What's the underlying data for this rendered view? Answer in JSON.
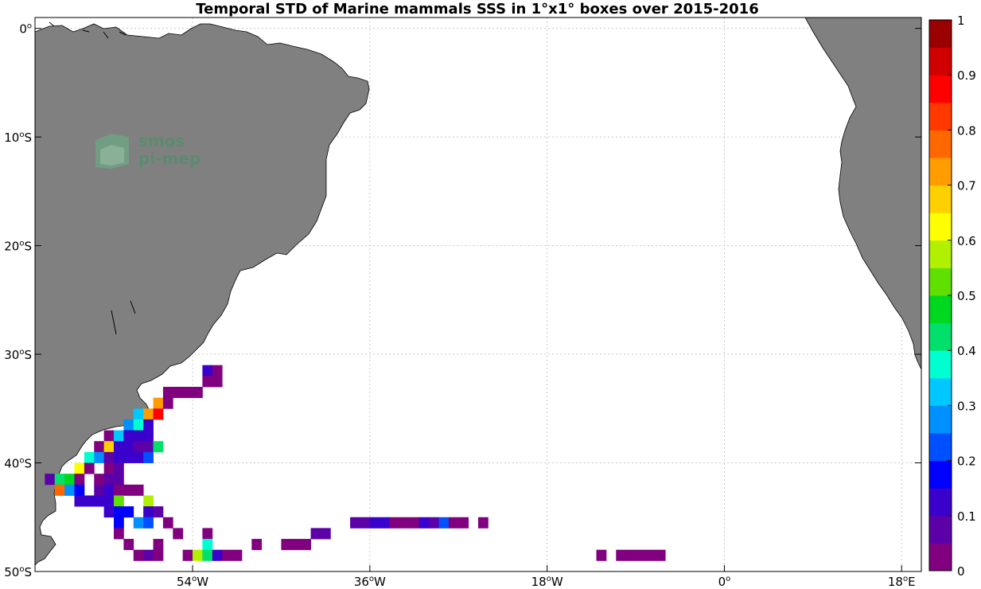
{
  "chart_data": {
    "type": "heatmap",
    "title": "Temporal STD of Marine mammals SSS in 1°x1° boxes over 2015-2016",
    "map_extent": {
      "lon": [
        -70,
        20
      ],
      "lat": [
        -50,
        1
      ]
    },
    "x_ticks": [
      {
        "value": -54,
        "num": "54",
        "hemi": "W"
      },
      {
        "value": -36,
        "num": "36",
        "hemi": "W"
      },
      {
        "value": -18,
        "num": "18",
        "hemi": "W"
      },
      {
        "value": 0,
        "num": "0",
        "hemi": ""
      },
      {
        "value": 18,
        "num": "18",
        "hemi": "E"
      }
    ],
    "y_ticks": [
      {
        "value": 0,
        "num": "0",
        "hemi": ""
      },
      {
        "value": -10,
        "num": "10",
        "hemi": "S"
      },
      {
        "value": -20,
        "num": "20",
        "hemi": "S"
      },
      {
        "value": -30,
        "num": "30",
        "hemi": "S"
      },
      {
        "value": -40,
        "num": "40",
        "hemi": "S"
      },
      {
        "value": -50,
        "num": "50",
        "hemi": "S"
      }
    ],
    "grid": true,
    "colorbar": {
      "range": [
        0,
        1
      ],
      "ticks": [
        "0",
        "0.1",
        "0.2",
        "0.3",
        "0.4",
        "0.5",
        "0.6",
        "0.7",
        "0.8",
        "0.9",
        "1"
      ],
      "colors": [
        "#800080",
        "#5c00a8",
        "#3a00cc",
        "#0000ff",
        "#0050ff",
        "#0090ff",
        "#00c8ff",
        "#00ffd0",
        "#00e06a",
        "#00d820",
        "#60e000",
        "#b0f000",
        "#ffff00",
        "#ffd000",
        "#ff9c00",
        "#ff6800",
        "#ff3800",
        "#ff0000",
        "#d00000",
        "#9a0000"
      ]
    },
    "land_color": "#808080",
    "cells": [
      {
        "lon": -52.5,
        "lat": -31.5,
        "v": 0.1
      },
      {
        "lon": -51.5,
        "lat": -31.5,
        "v": 0.02
      },
      {
        "lon": -52.5,
        "lat": -32.5,
        "v": 0.02
      },
      {
        "lon": -51.5,
        "lat": -32.5,
        "v": 0.02
      },
      {
        "lon": -56.5,
        "lat": -33.5,
        "v": 0.02
      },
      {
        "lon": -55.5,
        "lat": -33.5,
        "v": 0.02
      },
      {
        "lon": -54.5,
        "lat": -33.5,
        "v": 0.02
      },
      {
        "lon": -53.5,
        "lat": -33.5,
        "v": 0.02
      },
      {
        "lon": -57.5,
        "lat": -34.5,
        "v": 0.74
      },
      {
        "lon": -56.5,
        "lat": -34.5,
        "v": 0.02
      },
      {
        "lon": -59.5,
        "lat": -35.5,
        "v": 0.3
      },
      {
        "lon": -58.5,
        "lat": -35.5,
        "v": 0.74
      },
      {
        "lon": -57.5,
        "lat": -35.5,
        "v": 0.86
      },
      {
        "lon": -60.5,
        "lat": -36.5,
        "v": 0.27
      },
      {
        "lon": -59.5,
        "lat": -36.5,
        "v": 0.38
      },
      {
        "lon": -58.5,
        "lat": -36.5,
        "v": 0.13
      },
      {
        "lon": -62.5,
        "lat": -37.5,
        "v": 0.02
      },
      {
        "lon": -61.5,
        "lat": -37.5,
        "v": 0.34
      },
      {
        "lon": -60.5,
        "lat": -37.5,
        "v": 0.13
      },
      {
        "lon": -59.5,
        "lat": -37.5,
        "v": 0.13
      },
      {
        "lon": -58.5,
        "lat": -37.5,
        "v": 0.1
      },
      {
        "lon": -63.5,
        "lat": -38.5,
        "v": 0.02
      },
      {
        "lon": -62.5,
        "lat": -38.5,
        "v": 0.65
      },
      {
        "lon": -61.5,
        "lat": -38.5,
        "v": 0.13
      },
      {
        "lon": -60.5,
        "lat": -38.5,
        "v": 0.1
      },
      {
        "lon": -59.5,
        "lat": -38.5,
        "v": 0.05
      },
      {
        "lon": -58.5,
        "lat": -38.5,
        "v": 0.05
      },
      {
        "lon": -57.5,
        "lat": -38.5,
        "v": 0.4
      },
      {
        "lon": -64.5,
        "lat": -39.5,
        "v": 0.38
      },
      {
        "lon": -63.5,
        "lat": -39.5,
        "v": 0.27
      },
      {
        "lon": -62.5,
        "lat": -39.5,
        "v": 0.05
      },
      {
        "lon": -61.5,
        "lat": -39.5,
        "v": 0.1
      },
      {
        "lon": -60.5,
        "lat": -39.5,
        "v": 0.1
      },
      {
        "lon": -59.5,
        "lat": -39.5,
        "v": 0.1
      },
      {
        "lon": -58.5,
        "lat": -39.5,
        "v": 0.2
      },
      {
        "lon": -65.5,
        "lat": -40.5,
        "v": 0.62
      },
      {
        "lon": -64.5,
        "lat": -40.5,
        "v": 0.02
      },
      {
        "lon": -62.5,
        "lat": -40.5,
        "v": 0.02
      },
      {
        "lon": -61.5,
        "lat": -40.5,
        "v": 0.05
      },
      {
        "lon": -68.5,
        "lat": -41.5,
        "v": 0.05
      },
      {
        "lon": -67.5,
        "lat": -41.5,
        "v": 0.42
      },
      {
        "lon": -66.5,
        "lat": -41.5,
        "v": 0.45
      },
      {
        "lon": -65.5,
        "lat": -41.5,
        "v": 0.02
      },
      {
        "lon": -63.5,
        "lat": -41.5,
        "v": 0.02
      },
      {
        "lon": -62.5,
        "lat": -41.5,
        "v": 0.05
      },
      {
        "lon": -61.5,
        "lat": -41.5,
        "v": 0.05
      },
      {
        "lon": -67.5,
        "lat": -42.5,
        "v": 0.76
      },
      {
        "lon": -66.5,
        "lat": -42.5,
        "v": 0.27
      },
      {
        "lon": -65.5,
        "lat": -42.5,
        "v": 0.17
      },
      {
        "lon": -63.5,
        "lat": -42.5,
        "v": 0.05
      },
      {
        "lon": -62.5,
        "lat": -42.5,
        "v": 0.1
      },
      {
        "lon": -61.5,
        "lat": -42.5,
        "v": 0.02
      },
      {
        "lon": -60.5,
        "lat": -42.5,
        "v": 0.02
      },
      {
        "lon": -59.5,
        "lat": -42.5,
        "v": 0.02
      },
      {
        "lon": -65.5,
        "lat": -43.5,
        "v": 0.1
      },
      {
        "lon": -64.5,
        "lat": -43.5,
        "v": 0.1
      },
      {
        "lon": -63.5,
        "lat": -43.5,
        "v": 0.1
      },
      {
        "lon": -62.5,
        "lat": -43.5,
        "v": 0.13
      },
      {
        "lon": -61.5,
        "lat": -43.5,
        "v": 0.5
      },
      {
        "lon": -58.5,
        "lat": -43.5,
        "v": 0.58
      },
      {
        "lon": -62.5,
        "lat": -44.5,
        "v": 0.13
      },
      {
        "lon": -61.5,
        "lat": -44.5,
        "v": 0.17
      },
      {
        "lon": -60.5,
        "lat": -44.5,
        "v": 0.17
      },
      {
        "lon": -58.5,
        "lat": -44.5,
        "v": 0.13
      },
      {
        "lon": -57.5,
        "lat": -44.5,
        "v": 0.05
      },
      {
        "lon": -61.5,
        "lat": -45.5,
        "v": 0.17
      },
      {
        "lon": -59.5,
        "lat": -45.5,
        "v": 0.27
      },
      {
        "lon": -58.5,
        "lat": -45.5,
        "v": 0.2
      },
      {
        "lon": -56.5,
        "lat": -45.5,
        "v": 0.02
      },
      {
        "lon": -37.5,
        "lat": -45.5,
        "v": 0.05
      },
      {
        "lon": -36.5,
        "lat": -45.5,
        "v": 0.05
      },
      {
        "lon": -35.5,
        "lat": -45.5,
        "v": 0.1
      },
      {
        "lon": -34.5,
        "lat": -45.5,
        "v": 0.1
      },
      {
        "lon": -33.5,
        "lat": -45.5,
        "v": 0.02
      },
      {
        "lon": -32.5,
        "lat": -45.5,
        "v": 0.02
      },
      {
        "lon": -31.5,
        "lat": -45.5,
        "v": 0.02
      },
      {
        "lon": -30.5,
        "lat": -45.5,
        "v": 0.1
      },
      {
        "lon": -29.5,
        "lat": -45.5,
        "v": 0.05
      },
      {
        "lon": -28.5,
        "lat": -45.5,
        "v": 0.24
      },
      {
        "lon": -27.5,
        "lat": -45.5,
        "v": 0.02
      },
      {
        "lon": -26.5,
        "lat": -45.5,
        "v": 0.02
      },
      {
        "lon": -24.5,
        "lat": -45.5,
        "v": 0.02
      },
      {
        "lon": -61.5,
        "lat": -46.5,
        "v": 0.02
      },
      {
        "lon": -55.5,
        "lat": -46.5,
        "v": 0.02
      },
      {
        "lon": -52.5,
        "lat": -46.5,
        "v": 0.02
      },
      {
        "lon": -41.5,
        "lat": -46.5,
        "v": 0.05
      },
      {
        "lon": -40.5,
        "lat": -46.5,
        "v": 0.05
      },
      {
        "lon": -60.5,
        "lat": -47.5,
        "v": 0.02
      },
      {
        "lon": -57.5,
        "lat": -47.5,
        "v": 0.02
      },
      {
        "lon": -52.5,
        "lat": -47.5,
        "v": 0.38
      },
      {
        "lon": -47.5,
        "lat": -47.5,
        "v": 0.02
      },
      {
        "lon": -44.5,
        "lat": -47.5,
        "v": 0.02
      },
      {
        "lon": -43.5,
        "lat": -47.5,
        "v": 0.02
      },
      {
        "lon": -42.5,
        "lat": -47.5,
        "v": 0.02
      },
      {
        "lon": -59.5,
        "lat": -48.5,
        "v": 0.02
      },
      {
        "lon": -58.5,
        "lat": -48.5,
        "v": 0.05
      },
      {
        "lon": -57.5,
        "lat": -48.5,
        "v": 0.02
      },
      {
        "lon": -54.5,
        "lat": -48.5,
        "v": 0.02
      },
      {
        "lon": -53.5,
        "lat": -48.5,
        "v": 0.55
      },
      {
        "lon": -52.5,
        "lat": -48.5,
        "v": 0.42
      },
      {
        "lon": -51.5,
        "lat": -48.5,
        "v": 0.1
      },
      {
        "lon": -50.5,
        "lat": -48.5,
        "v": 0.02
      },
      {
        "lon": -49.5,
        "lat": -48.5,
        "v": 0.02
      },
      {
        "lon": -12.5,
        "lat": -48.5,
        "v": 0.02
      },
      {
        "lon": -10.5,
        "lat": -48.5,
        "v": 0.02
      },
      {
        "lon": -9.5,
        "lat": -48.5,
        "v": 0.02
      },
      {
        "lon": -8.5,
        "lat": -48.5,
        "v": 0.02
      },
      {
        "lon": -7.5,
        "lat": -48.5,
        "v": 0.02
      },
      {
        "lon": -6.5,
        "lat": -48.5,
        "v": 0.02
      }
    ]
  },
  "watermark": {
    "line1": "smos",
    "line2": "pi-mep"
  }
}
